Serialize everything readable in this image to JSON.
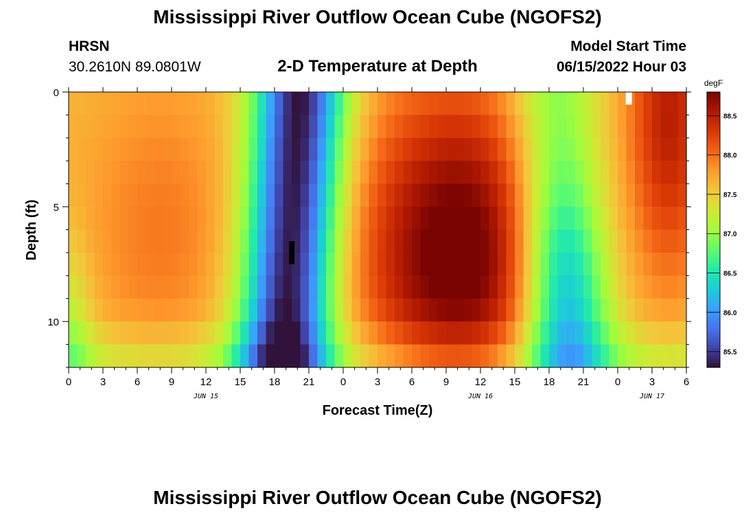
{
  "header": {
    "title": "Mississippi River Outflow Ocean Cube (NGOFS2)",
    "station": "HRSN",
    "coordinates": "30.2610N  89.0801W",
    "subtitle": "2-D Temperature at Depth",
    "model_start_label": "Model Start Time",
    "model_start_value": "06/15/2022 Hour 03"
  },
  "footer": {
    "title": "Mississippi River Outflow Ocean Cube (NGOFS2)"
  },
  "chart_data": {
    "type": "heatmap",
    "xlabel": "Forecast Time(Z)",
    "ylabel": "Depth (ft)",
    "x_ticks": [
      "0",
      "3",
      "6",
      "9",
      "12",
      "15",
      "18",
      "21",
      "0",
      "3",
      "6",
      "9",
      "12",
      "15",
      "18",
      "21",
      "0",
      "3",
      "6"
    ],
    "x_range_hours": [
      0,
      54
    ],
    "date_labels": [
      {
        "text": "JUN 15",
        "hour": 12
      },
      {
        "text": "JUN 16",
        "hour": 36
      },
      {
        "text": "JUN 17",
        "hour": 51
      }
    ],
    "y_ticks": [
      "0",
      "5",
      "10"
    ],
    "y_range_ft": [
      0,
      12
    ],
    "colorbar": {
      "unit": "degF",
      "range": [
        85.3,
        88.8
      ],
      "ticks": [
        "88.5",
        "88.0",
        "87.5",
        "87.0",
        "86.5",
        "86.0",
        "85.5"
      ]
    },
    "features": {
      "cool_band_1_center_hour": 19.5,
      "cool_band_2_center_hour": 43,
      "warm_core_center_hour": 34,
      "warm_core_depth_ft": 7,
      "min_temp": 85.3,
      "max_temp": 88.8
    },
    "colors": [
      "#30123b",
      "#4145ab",
      "#4675ed",
      "#39a2fc",
      "#1bcfd4",
      "#24eca6",
      "#61fc6c",
      "#a4fc3b",
      "#d1e834",
      "#f3c63a",
      "#fe9b2d",
      "#f36315",
      "#d93806",
      "#b11901",
      "#7a0402"
    ]
  }
}
